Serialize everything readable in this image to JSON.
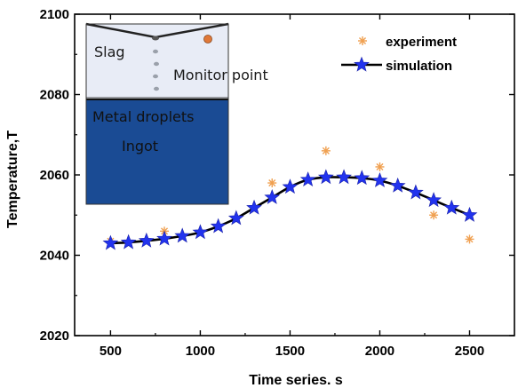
{
  "chart_data": {
    "type": "line",
    "title": "",
    "xlabel": "Time series. s",
    "ylabel": "Temperature,T",
    "xlim": [
      300,
      2750
    ],
    "ylim": [
      2020,
      2100
    ],
    "x_ticks": [
      500,
      1000,
      1500,
      2000,
      2500
    ],
    "y_ticks": [
      2020,
      2040,
      2060,
      2080,
      2100
    ],
    "grid": false,
    "legend_position": "top-right",
    "series": [
      {
        "name": "experiment",
        "marker": "asterisk",
        "color": "#f0a050",
        "x": [
          500,
          800,
          1400,
          1700,
          2000,
          2300,
          2500
        ],
        "values": [
          2043.5,
          2046,
          2058,
          2066,
          2062,
          2050,
          2044
        ]
      },
      {
        "name": "simulation",
        "marker": "star",
        "line_color": "#000000",
        "marker_color": "#2233ee",
        "x": [
          500,
          600,
          700,
          800,
          900,
          1000,
          1100,
          1200,
          1300,
          1400,
          1500,
          1600,
          1700,
          1800,
          1900,
          2000,
          2100,
          2200,
          2300,
          2400,
          2500
        ],
        "values": [
          2043,
          2043.2,
          2043.6,
          2044.1,
          2044.8,
          2045.7,
          2047.2,
          2049.2,
          2051.8,
          2054.4,
          2057.0,
          2058.8,
          2059.4,
          2059.4,
          2059.2,
          2058.6,
          2057.3,
          2055.6,
          2053.7,
          2051.8,
          2050.0
        ]
      }
    ],
    "inset": {
      "labels": {
        "slag": "Slag",
        "monitor_point": "Monitor point",
        "metal_droplets": "Metal droplets",
        "ingot": "Ingot"
      },
      "colors": {
        "slag": "#e8ecf6",
        "ingot": "#1a4b94",
        "droplet": "#9aa0aa",
        "monitor": "#e07838"
      }
    }
  }
}
